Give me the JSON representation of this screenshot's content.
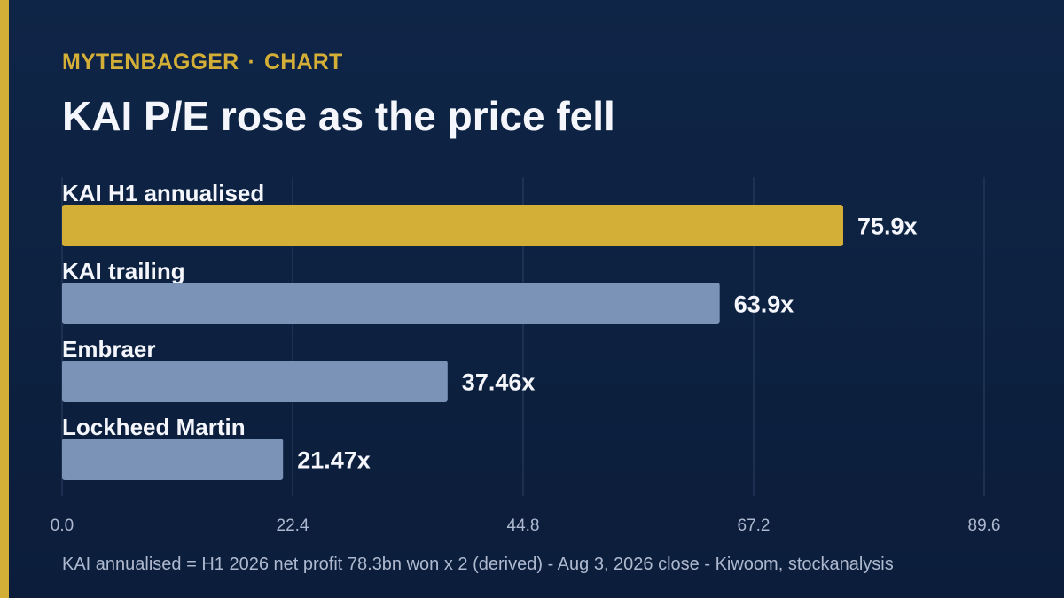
{
  "header": {
    "kicker_brand": "MYTENBAGGER",
    "kicker_separator": "·",
    "kicker_section": "CHART",
    "title": "KAI P/E rose as the price fell"
  },
  "footnote": "KAI annualised = H1 2026 net profit 78.3bn won x 2 (derived) - Aug 3, 2026 close - Kiwoom, stockanalysis",
  "colors": {
    "accent": "#d4af37",
    "bar_default": "#7b93b6",
    "background": "#0f2547",
    "grid": "#2c4063",
    "label": "#f4f6fb",
    "tick": "#aeb9cf"
  },
  "chart_data": {
    "type": "bar",
    "orientation": "horizontal",
    "categories": [
      "KAI H1 annualised",
      "KAI trailing",
      "Embraer",
      "Lockheed Martin"
    ],
    "values": [
      75.9,
      63.9,
      37.46,
      21.47
    ],
    "value_labels": [
      "75.9x",
      "63.9x",
      "37.46x",
      "21.47x"
    ],
    "highlight_index": 0,
    "x_ticks": [
      0.0,
      22.4,
      44.8,
      67.2,
      89.6
    ],
    "x_tick_labels": [
      "0.0",
      "22.4",
      "44.8",
      "67.2",
      "89.6"
    ],
    "xlim": [
      0,
      89.6
    ],
    "grid": true,
    "legend": "none"
  }
}
